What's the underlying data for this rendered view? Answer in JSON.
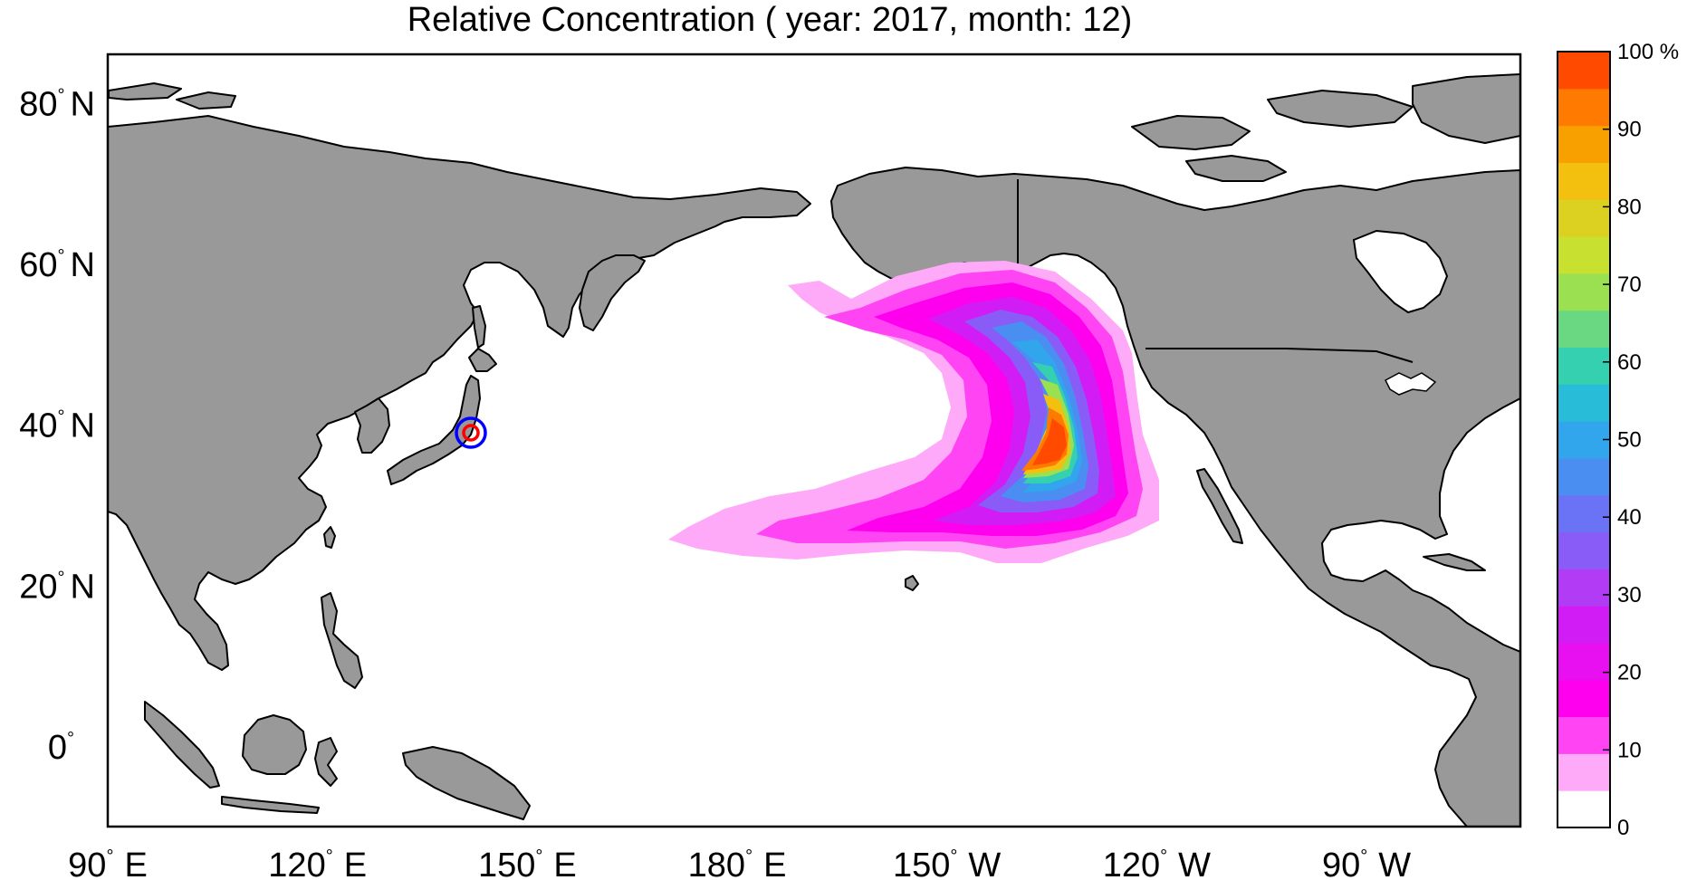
{
  "title": "Relative Concentration ( year: 2017, month: 12)",
  "map": {
    "projection": "equirectangular",
    "lon_range_deg_east": [
      90,
      292
    ],
    "lat_range_deg": [
      -10,
      86
    ],
    "land_color": "#999999",
    "ocean_color": "#ffffff",
    "coastline_color": "#000000"
  },
  "lat_ticks": [
    {
      "value": 80,
      "deg": "°",
      "label": "N"
    },
    {
      "value": 60,
      "deg": "°",
      "label": "N"
    },
    {
      "value": 40,
      "deg": "°",
      "label": "N"
    },
    {
      "value": 20,
      "deg": "°",
      "label": "N"
    },
    {
      "value": 0,
      "deg": "°",
      "label": ""
    }
  ],
  "lon_ticks": [
    {
      "value": 90,
      "label_num": "90",
      "deg": "°",
      "label_dir": "E"
    },
    {
      "value": 120,
      "label_num": "120",
      "deg": "°",
      "label_dir": "E"
    },
    {
      "value": 150,
      "label_num": "150",
      "deg": "°",
      "label_dir": "E"
    },
    {
      "value": 180,
      "label_num": "180",
      "deg": "°",
      "label_dir": "E"
    },
    {
      "value": 210,
      "label_num": "150",
      "deg": "°",
      "label_dir": "W"
    },
    {
      "value": 240,
      "label_num": "120",
      "deg": "°",
      "label_dir": "W"
    },
    {
      "value": 270,
      "label_num": "90",
      "deg": "°",
      "label_dir": "W"
    }
  ],
  "source_marker": {
    "name": "Fukushima release point",
    "lon": 141.0,
    "lat": 37.4,
    "outer_color": "#0000ff",
    "inner_color": "#ff0000"
  },
  "colorbar": {
    "unit_suffix": " %",
    "tick_labels": [
      "0",
      "10",
      "20",
      "30",
      "40",
      "50",
      "60",
      "70",
      "80",
      "90",
      "100"
    ],
    "bands": [
      "#ffffff",
      "#ffaaf8",
      "#ff44f4",
      "#ff00ee",
      "#e810f0",
      "#d21cf5",
      "#b23cf6",
      "#8a5cf7",
      "#6a72f5",
      "#4a8ef2",
      "#32a6ec",
      "#28bcd8",
      "#34d0b0",
      "#6ad882",
      "#9ae050",
      "#c8e030",
      "#dcd020",
      "#f4c010",
      "#f8a000",
      "#ff7a00",
      "#ff4a00"
    ]
  },
  "plume": {
    "description_levels_percent": [
      5,
      10,
      15,
      20,
      25,
      30,
      40,
      50,
      60,
      70,
      80,
      90
    ],
    "peak_location": {
      "lon": 223.5,
      "lat": 39.0
    },
    "peak_value_percent": 100
  }
}
